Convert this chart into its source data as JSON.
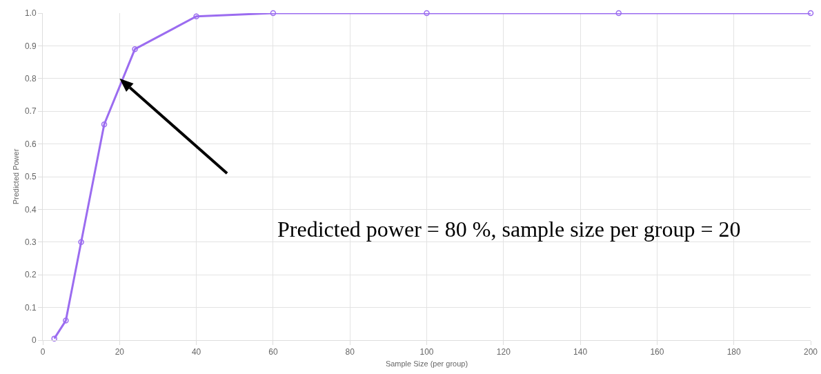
{
  "chart_data": {
    "type": "line",
    "xlabel": "Sample Size (per group)",
    "ylabel": "Predicted Power",
    "x": [
      3,
      6,
      10,
      16,
      24,
      40,
      60,
      100,
      150,
      200
    ],
    "series": [
      {
        "color": "#9b6cf0",
        "values": [
          0.005,
          0.06,
          0.3,
          0.66,
          0.89,
          0.99,
          1,
          1,
          1,
          1
        ]
      }
    ],
    "xlim": [
      0,
      200
    ],
    "xticks": [
      0,
      20,
      40,
      60,
      80,
      100,
      120,
      140,
      160,
      180,
      200
    ],
    "ylim": [
      0,
      1
    ],
    "yticks": [
      0,
      0.1,
      0.2,
      0.3,
      0.4,
      0.5,
      0.6,
      0.7,
      0.8,
      0.9,
      {
        "value": 1,
        "label": "1.0"
      }
    ],
    "annotations": [
      "Predicted power = 80 %, sample size per group = 20"
    ],
    "grid": true,
    "marker": "circle",
    "line_style": "solid"
  }
}
